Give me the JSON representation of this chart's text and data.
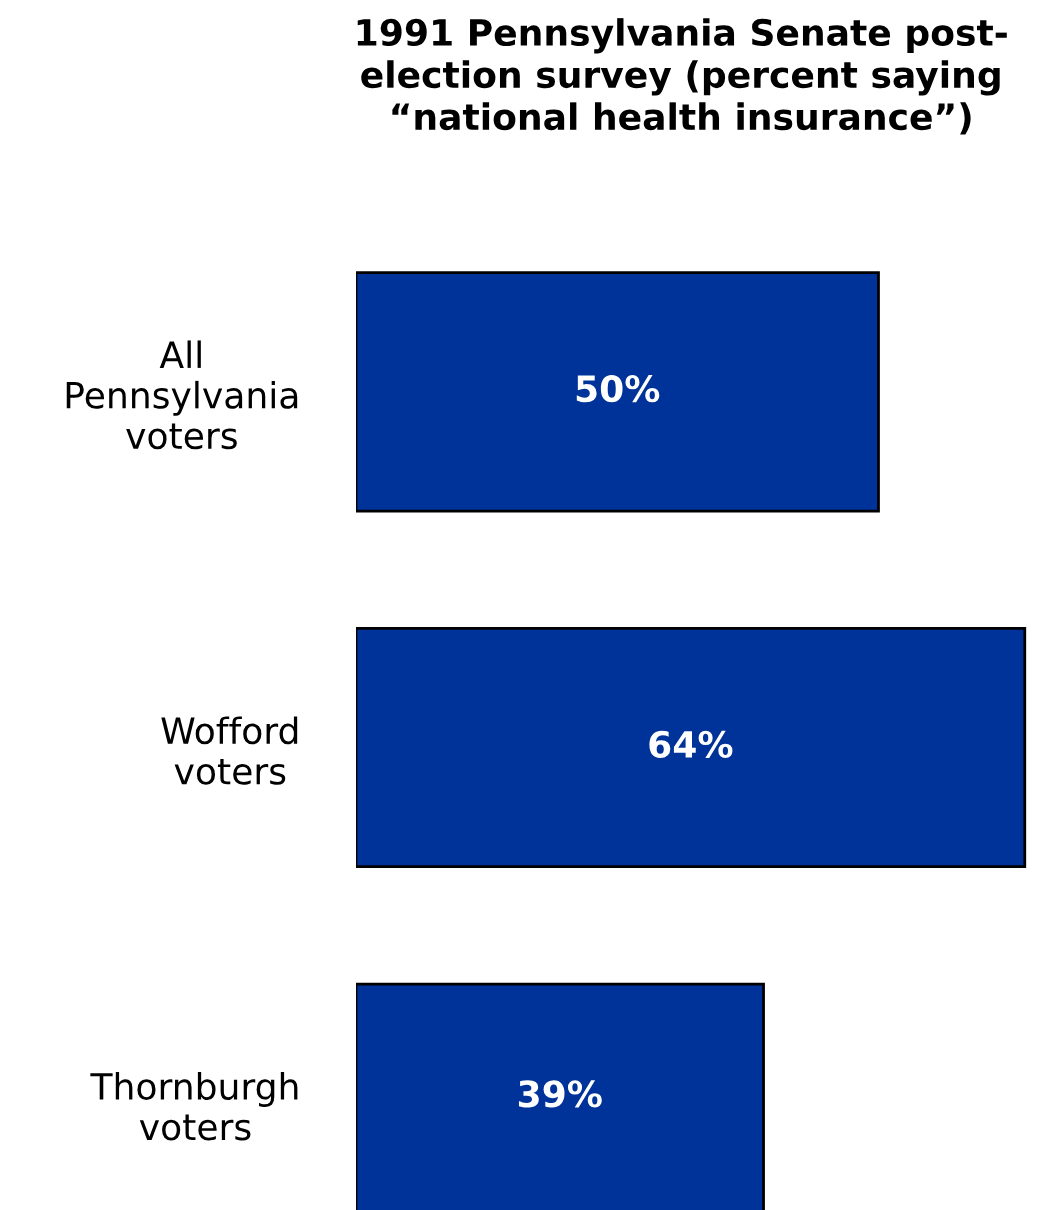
{
  "chart_data": {
    "type": "bar",
    "orientation": "horizontal",
    "title": "1991 Pennsylvania Senate post-\nelection survey (percent saying\n“national health insurance”)",
    "categories": [
      "All\nPennsylvania\nvoters",
      "Wofford\nvoters",
      "Thornburgh\nvoters"
    ],
    "values": [
      50,
      64,
      39
    ],
    "value_labels": [
      "50%",
      "64%",
      "39%"
    ],
    "color": "#003399",
    "grid": false,
    "legend": false
  }
}
